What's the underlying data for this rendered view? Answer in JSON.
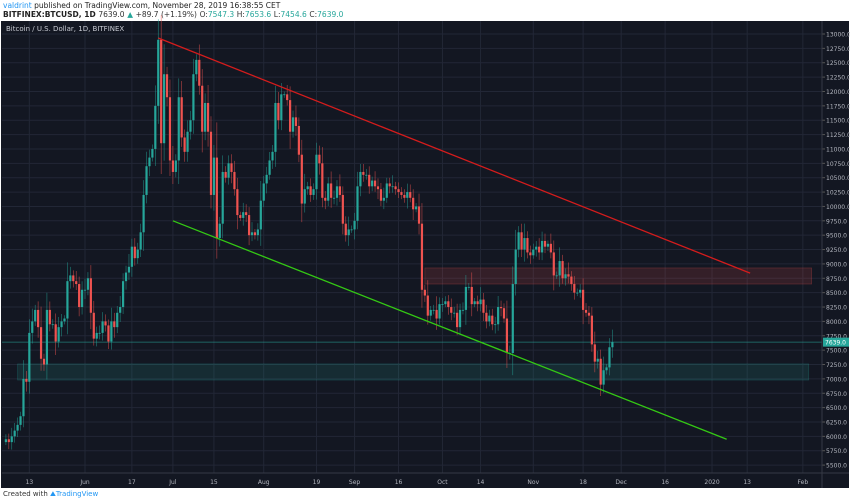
{
  "header": {
    "author": "valdrint",
    "published_text": "published on TradingView.com, November 28, 2019 16:38:55 CET",
    "symbol": "BITFINEX:BTCUSD, 1D",
    "last": "7639.0",
    "change_arrow": "▲",
    "change": "+89.7 (+1.19%)",
    "o_label": "O:",
    "o": "7547.3",
    "h_label": "H:",
    "h": "7653.6",
    "l_label": "L:",
    "l": "7454.6",
    "c_label": "C:",
    "c": "7639.0"
  },
  "legend": "Bitcoin / U.S. Dollar, 1D, BITFINEX",
  "footer": {
    "created_with": "Created with",
    "brand": "TradingView"
  },
  "colors": {
    "background": "#131722",
    "grid": "#222736",
    "up": "#26a69a",
    "down": "#ef5350",
    "resistance_line": "#d41c1c",
    "support_line": "#34c914",
    "price_line": "#26a69a"
  },
  "chart_data": {
    "type": "candlestick",
    "interval": "1D",
    "first_date": "2019-05-05",
    "closes": [
      5950,
      5900,
      6000,
      6100,
      6200,
      6350,
      7000,
      6950,
      7800,
      8000,
      8200,
      7900,
      7350,
      7250,
      8200,
      7950,
      7950,
      7650,
      7900,
      8000,
      8050,
      8700,
      8800,
      8700,
      8650,
      8250,
      8550,
      8550,
      8750,
      8150,
      7700,
      7800,
      7800,
      8000,
      7930,
      7650,
      8000,
      7900,
      8150,
      8250,
      8700,
      8850,
      8950,
      9300,
      9100,
      9250,
      9550,
      10200,
      10700,
      10850,
      11000,
      11750,
      12900,
      11100,
      12300,
      11900,
      10800,
      10600,
      10800,
      11900,
      11200,
      10950,
      11300,
      11500,
      12300,
      12550,
      12100,
      11300,
      11800,
      11300,
      10200,
      10850,
      9450,
      9700,
      10600,
      10500,
      10750,
      10600,
      10300,
      9850,
      9800,
      9900,
      9850,
      9500,
      9550,
      9500,
      9600,
      10100,
      10400,
      10550,
      10800,
      10950,
      11800,
      11500,
      11950,
      11950,
      11850,
      11300,
      11550,
      11400,
      10900,
      10050,
      10300,
      10350,
      10200,
      10300,
      10900,
      10750,
      10150,
      10100,
      10400,
      10150,
      10150,
      10350,
      10200,
      9700,
      9500,
      9600,
      9600,
      9750,
      10350,
      10600,
      10550,
      10550,
      10350,
      10450,
      10350,
      10300,
      10100,
      10150,
      10400,
      10350,
      10350,
      10300,
      10250,
      10200,
      10150,
      10250,
      10150,
      9950,
      10000,
      9700,
      8550,
      8450,
      8100,
      8200,
      8200,
      8050,
      8300,
      8300,
      8350,
      8250,
      8150,
      8150,
      7900,
      8200,
      8200,
      8600,
      8600,
      8300,
      8350,
      8300,
      8380,
      8150,
      8000,
      8100,
      7950,
      7950,
      8250,
      8230,
      8050,
      7450,
      7450,
      8650,
      9250,
      9550,
      9250,
      9450,
      9200,
      9150,
      9250,
      9300,
      9200,
      9400,
      9300,
      9350,
      9200,
      8800,
      8800,
      9050,
      8750,
      8820,
      8780,
      8650,
      8500,
      8500,
      8550,
      8200,
      8150,
      8100,
      7600,
      7300,
      7350,
      6900,
      7150,
      7200,
      7550,
      7639
    ],
    "ylim": [
      5500,
      13000
    ],
    "y_ticks": [
      13000,
      12750,
      12500,
      12250,
      12000,
      11750,
      11500,
      11250,
      11000,
      10750,
      10500,
      10250,
      10000,
      9750,
      9500,
      9250,
      9000,
      8750,
      8500,
      8250,
      8000,
      7750,
      7500,
      7250,
      7000,
      6750,
      6500,
      6250,
      6000,
      5750,
      5500
    ],
    "x_ticks": [
      {
        "label": "13",
        "date": "2019-05-13"
      },
      {
        "label": "Jun",
        "date": "2019-06-01"
      },
      {
        "label": "17",
        "date": "2019-06-17"
      },
      {
        "label": "Jul",
        "date": "2019-07-01"
      },
      {
        "label": "15",
        "date": "2019-07-15"
      },
      {
        "label": "Aug",
        "date": "2019-08-01"
      },
      {
        "label": "19",
        "date": "2019-08-19"
      },
      {
        "label": "Sep",
        "date": "2019-09-01"
      },
      {
        "label": "16",
        "date": "2019-09-16"
      },
      {
        "label": "Oct",
        "date": "2019-10-01"
      },
      {
        "label": "14",
        "date": "2019-10-14"
      },
      {
        "label": "Nov",
        "date": "2019-11-01"
      },
      {
        "label": "18",
        "date": "2019-11-18"
      },
      {
        "label": "Dec",
        "date": "2019-12-01"
      },
      {
        "label": "16",
        "date": "2019-12-16"
      },
      {
        "label": "2020",
        "date": "2020-01-01"
      },
      {
        "label": "13",
        "date": "2020-01-13"
      },
      {
        "label": "Feb",
        "date": "2020-02-01"
      }
    ],
    "current_price": 7639.0,
    "current_price_label": "7639.0",
    "trendlines": [
      {
        "name": "resistance",
        "color": "#d41c1c",
        "from": [
          "2019-06-26",
          12930
        ],
        "to": [
          "2020-01-14",
          8840
        ]
      },
      {
        "name": "support",
        "color": "#34c914",
        "from": [
          "2019-07-01",
          9750
        ],
        "to": [
          "2020-01-06",
          5950
        ]
      }
    ],
    "zones": [
      {
        "name": "resistance-zone",
        "color": "#ef5350",
        "from": "2019-09-25",
        "to": "2020-02-04",
        "low": 8650,
        "high": 8930
      },
      {
        "name": "support-zone",
        "color": "#26a69a",
        "from": "2019-05-09",
        "to": "2020-02-03",
        "low": 6980,
        "high": 7260
      }
    ],
    "grid": true
  }
}
